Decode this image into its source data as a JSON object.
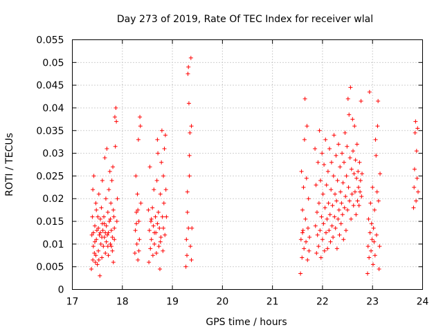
{
  "chart_data": {
    "type": "scatter",
    "title": "Day 273 of 2019, Rate Of TEC Index for receiver wlal",
    "xlabel": "GPS time / hours",
    "ylabel": "ROTI / TECUs",
    "xlim": [
      17,
      24
    ],
    "ylim": [
      0,
      0.055
    ],
    "xticks": [
      "17",
      "18",
      "19",
      "20",
      "21",
      "22",
      "23",
      "24"
    ],
    "yticks": [
      "0",
      "0.005",
      "0.01",
      "0.015",
      "0.02",
      "0.025",
      "0.03",
      "0.035",
      "0.04",
      "0.045",
      "0.05",
      "0.055"
    ],
    "grid": true,
    "marker": "+",
    "color": "#ff0000",
    "series": [
      {
        "name": "ROTI",
        "points": [
          [
            17.38,
            0.0045
          ],
          [
            17.39,
            0.012
          ],
          [
            17.4,
            0.016
          ],
          [
            17.41,
            0.022
          ],
          [
            17.42,
            0.0095
          ],
          [
            17.43,
            0.025
          ],
          [
            17.44,
            0.008
          ],
          [
            17.45,
            0.014
          ],
          [
            17.46,
            0.006
          ],
          [
            17.47,
            0.019
          ],
          [
            17.48,
            0.011
          ],
          [
            17.49,
            0.013
          ],
          [
            17.5,
            0.0055
          ],
          [
            17.51,
            0.016
          ],
          [
            17.52,
            0.0085
          ],
          [
            17.53,
            0.021
          ],
          [
            17.54,
            0.012
          ],
          [
            17.55,
            0.003
          ],
          [
            17.56,
            0.0155
          ],
          [
            17.57,
            0.01
          ],
          [
            17.58,
            0.018
          ],
          [
            17.59,
            0.007
          ],
          [
            17.6,
            0.024
          ],
          [
            17.61,
            0.013
          ],
          [
            17.62,
            0.0095
          ],
          [
            17.63,
            0.016
          ],
          [
            17.64,
            0.0115
          ],
          [
            17.65,
            0.029
          ],
          [
            17.66,
            0.008
          ],
          [
            17.67,
            0.02
          ],
          [
            17.68,
            0.014
          ],
          [
            17.69,
            0.031
          ],
          [
            17.7,
            0.012
          ],
          [
            17.71,
            0.017
          ],
          [
            17.72,
            0.0075
          ],
          [
            17.73,
            0.022
          ],
          [
            17.74,
            0.015
          ],
          [
            17.75,
            0.026
          ],
          [
            17.76,
            0.01
          ],
          [
            17.77,
            0.019
          ],
          [
            17.78,
            0.013
          ],
          [
            17.79,
            0.024
          ],
          [
            17.8,
            0.0085
          ],
          [
            17.81,
            0.027
          ],
          [
            17.82,
            0.006
          ],
          [
            17.83,
            0.016
          ],
          [
            17.84,
            0.011
          ],
          [
            17.85,
            0.038
          ],
          [
            17.86,
            0.0315
          ],
          [
            17.87,
            0.04
          ],
          [
            17.88,
            0.037
          ],
          [
            17.89,
            0.015
          ],
          [
            17.9,
            0.02
          ],
          [
            17.42,
            0.0125
          ],
          [
            17.45,
            0.0105
          ],
          [
            17.48,
            0.0175
          ],
          [
            17.52,
            0.0135
          ],
          [
            17.56,
            0.0125
          ],
          [
            17.6,
            0.0145
          ],
          [
            17.64,
            0.0145
          ],
          [
            17.68,
            0.0105
          ],
          [
            17.72,
            0.0125
          ],
          [
            17.76,
            0.0155
          ],
          [
            17.8,
            0.0115
          ],
          [
            17.84,
            0.0135
          ],
          [
            17.41,
            0.0065
          ],
          [
            17.47,
            0.0075
          ],
          [
            17.53,
            0.0065
          ],
          [
            17.59,
            0.0115
          ],
          [
            17.66,
            0.0125
          ],
          [
            17.71,
            0.0095
          ],
          [
            17.78,
            0.0095
          ],
          [
            17.82,
            0.0175
          ],
          [
            18.25,
            0.008
          ],
          [
            18.26,
            0.013
          ],
          [
            18.27,
            0.025
          ],
          [
            18.28,
            0.017
          ],
          [
            18.29,
            0.01
          ],
          [
            18.3,
            0.021
          ],
          [
            18.31,
            0.0065
          ],
          [
            18.32,
            0.033
          ],
          [
            18.33,
            0.015
          ],
          [
            18.34,
            0.011
          ],
          [
            18.35,
            0.038
          ],
          [
            18.36,
            0.036
          ],
          [
            18.37,
            0.019
          ],
          [
            18.28,
            0.0145
          ],
          [
            18.31,
            0.0175
          ],
          [
            18.33,
            0.0085
          ],
          [
            18.52,
            0.0175
          ],
          [
            18.53,
            0.006
          ],
          [
            18.54,
            0.013
          ],
          [
            18.55,
            0.027
          ],
          [
            18.56,
            0.009
          ],
          [
            18.57,
            0.015
          ],
          [
            18.58,
            0.011
          ],
          [
            18.6,
            0.018
          ],
          [
            18.61,
            0.0075
          ],
          [
            18.62,
            0.014
          ],
          [
            18.63,
            0.022
          ],
          [
            18.64,
            0.01
          ],
          [
            18.66,
            0.016
          ],
          [
            18.67,
            0.0125
          ],
          [
            18.68,
            0.008
          ],
          [
            18.69,
            0.024
          ],
          [
            18.7,
            0.033
          ],
          [
            18.71,
            0.03
          ],
          [
            18.72,
            0.017
          ],
          [
            18.73,
            0.0095
          ],
          [
            18.74,
            0.0135
          ],
          [
            18.75,
            0.0045
          ],
          [
            18.76,
            0.021
          ],
          [
            18.77,
            0.0115
          ],
          [
            18.78,
            0.028
          ],
          [
            18.79,
            0.035
          ],
          [
            18.8,
            0.016
          ],
          [
            18.81,
            0.0085
          ],
          [
            18.82,
            0.025
          ],
          [
            18.83,
            0.019
          ],
          [
            18.84,
            0.031
          ],
          [
            18.85,
            0.012
          ],
          [
            18.86,
            0.034
          ],
          [
            18.87,
            0.022
          ],
          [
            18.88,
            0.016
          ],
          [
            18.58,
            0.0155
          ],
          [
            18.64,
            0.0125
          ],
          [
            18.7,
            0.0145
          ],
          [
            18.76,
            0.0105
          ],
          [
            18.82,
            0.0135
          ],
          [
            19.27,
            0.005
          ],
          [
            19.28,
            0.011
          ],
          [
            19.29,
            0.0075
          ],
          [
            19.3,
            0.017
          ],
          [
            19.31,
            0.0475
          ],
          [
            19.32,
            0.049
          ],
          [
            19.33,
            0.041
          ],
          [
            19.34,
            0.025
          ],
          [
            19.35,
            0.0345
          ],
          [
            19.36,
            0.0095
          ],
          [
            19.37,
            0.051
          ],
          [
            19.38,
            0.036
          ],
          [
            19.39,
            0.0135
          ],
          [
            19.3,
            0.0215
          ],
          [
            19.34,
            0.0295
          ],
          [
            19.32,
            0.0135
          ],
          [
            19.38,
            0.0065
          ],
          [
            21.56,
            0.0035
          ],
          [
            21.57,
            0.011
          ],
          [
            21.58,
            0.026
          ],
          [
            21.59,
            0.007
          ],
          [
            21.6,
            0.0175
          ],
          [
            21.61,
            0.013
          ],
          [
            21.62,
            0.0225
          ],
          [
            21.63,
            0.009
          ],
          [
            21.64,
            0.033
          ],
          [
            21.65,
            0.042
          ],
          [
            21.66,
            0.0155
          ],
          [
            21.67,
            0.0105
          ],
          [
            21.68,
            0.0245
          ],
          [
            21.69,
            0.036
          ],
          [
            21.7,
            0.0065
          ],
          [
            21.71,
            0.0135
          ],
          [
            21.72,
            0.02
          ],
          [
            21.73,
            0.0085
          ],
          [
            21.74,
            0.0115
          ],
          [
            21.6,
            0.0125
          ],
          [
            21.85,
            0.031
          ],
          [
            21.86,
            0.014
          ],
          [
            21.87,
            0.023
          ],
          [
            21.88,
            0.008
          ],
          [
            21.89,
            0.017
          ],
          [
            21.9,
            0.012
          ],
          [
            21.91,
            0.028
          ],
          [
            21.92,
            0.0095
          ],
          [
            21.93,
            0.019
          ],
          [
            21.94,
            0.035
          ],
          [
            21.95,
            0.013
          ],
          [
            21.96,
            0.024
          ],
          [
            21.97,
            0.007
          ],
          [
            21.98,
            0.016
          ],
          [
            21.99,
            0.03
          ],
          [
            22.0,
            0.011
          ],
          [
            22.01,
            0.021
          ],
          [
            22.02,
            0.0145
          ],
          [
            22.03,
            0.0275
          ],
          [
            22.04,
            0.0085
          ],
          [
            22.05,
            0.018
          ],
          [
            22.06,
            0.033
          ],
          [
            22.07,
            0.0125
          ],
          [
            22.08,
            0.023
          ],
          [
            22.09,
            0.0155
          ],
          [
            22.1,
            0.009
          ],
          [
            22.11,
            0.026
          ],
          [
            22.12,
            0.019
          ],
          [
            22.13,
            0.013
          ],
          [
            22.14,
            0.031
          ],
          [
            22.15,
            0.0165
          ],
          [
            22.16,
            0.0105
          ],
          [
            22.17,
            0.022
          ],
          [
            22.18,
            0.028
          ],
          [
            22.19,
            0.014
          ],
          [
            22.2,
            0.0185
          ],
          [
            22.21,
            0.0115
          ],
          [
            22.22,
            0.025
          ],
          [
            22.23,
            0.034
          ],
          [
            22.24,
            0.016
          ],
          [
            22.25,
            0.021
          ],
          [
            22.26,
            0.0135
          ],
          [
            22.27,
            0.0295
          ],
          [
            22.28,
            0.0195
          ],
          [
            22.29,
            0.009
          ],
          [
            22.3,
            0.024
          ],
          [
            22.31,
            0.0155
          ],
          [
            22.32,
            0.032
          ],
          [
            22.33,
            0.0175
          ],
          [
            22.34,
            0.012
          ],
          [
            22.35,
            0.027
          ],
          [
            22.36,
            0.0215
          ],
          [
            22.37,
            0.0145
          ],
          [
            22.38,
            0.019
          ],
          [
            22.39,
            0.03
          ],
          [
            22.4,
            0.0165
          ],
          [
            22.41,
            0.0235
          ],
          [
            22.42,
            0.011
          ],
          [
            22.43,
            0.028
          ],
          [
            22.44,
            0.018
          ],
          [
            22.45,
            0.0345
          ],
          [
            22.46,
            0.0205
          ],
          [
            22.47,
            0.013
          ],
          [
            22.48,
            0.025
          ],
          [
            22.49,
            0.0315
          ],
          [
            22.5,
            0.0175
          ],
          [
            22.51,
            0.042
          ],
          [
            22.52,
            0.0225
          ],
          [
            22.53,
            0.0385
          ],
          [
            22.54,
            0.0195
          ],
          [
            22.55,
            0.029
          ],
          [
            22.56,
            0.0445
          ],
          [
            22.57,
            0.0155
          ],
          [
            22.58,
            0.0265
          ],
          [
            22.59,
            0.021
          ],
          [
            22.6,
            0.0375
          ],
          [
            22.61,
            0.0305
          ],
          [
            22.62,
            0.0185
          ],
          [
            22.63,
            0.0255
          ],
          [
            22.64,
            0.036
          ],
          [
            22.65,
            0.0215
          ],
          [
            22.66,
            0.0285
          ],
          [
            22.67,
            0.0165
          ],
          [
            22.68,
            0.0245
          ],
          [
            22.69,
            0.032
          ],
          [
            22.7,
            0.0195
          ],
          [
            22.71,
            0.026
          ],
          [
            22.72,
            0.0225
          ],
          [
            22.73,
            0.0185
          ],
          [
            22.74,
            0.028
          ],
          [
            22.75,
            0.0215
          ],
          [
            22.76,
            0.024
          ],
          [
            22.77,
            0.0415
          ],
          [
            22.78,
            0.0205
          ],
          [
            22.79,
            0.0255
          ],
          [
            22.9,
            0.0035
          ],
          [
            22.91,
            0.0095
          ],
          [
            22.92,
            0.0155
          ],
          [
            22.93,
            0.007
          ],
          [
            22.94,
            0.0435
          ],
          [
            22.95,
            0.0125
          ],
          [
            22.96,
            0.019
          ],
          [
            22.97,
            0.0085
          ],
          [
            22.98,
            0.0145
          ],
          [
            22.99,
            0.011
          ],
          [
            23.0,
            0.0225
          ],
          [
            23.01,
            0.0055
          ],
          [
            23.02,
            0.0135
          ],
          [
            23.03,
            0.0105
          ],
          [
            23.04,
            0.0175
          ],
          [
            23.05,
            0.0075
          ],
          [
            23.06,
            0.033
          ],
          [
            23.07,
            0.0295
          ],
          [
            23.08,
            0.012
          ],
          [
            23.09,
            0.0215
          ],
          [
            23.1,
            0.036
          ],
          [
            23.11,
            0.0415
          ],
          [
            23.12,
            0.0195
          ],
          [
            23.13,
            0.0045
          ],
          [
            23.14,
            0.0095
          ],
          [
            23.15,
            0.0255
          ],
          [
            23.82,
            0.018
          ],
          [
            23.83,
            0.0225
          ],
          [
            23.84,
            0.0265
          ],
          [
            23.85,
            0.0345
          ],
          [
            23.86,
            0.037
          ],
          [
            23.87,
            0.0195
          ],
          [
            23.88,
            0.0305
          ],
          [
            23.89,
            0.0245
          ],
          [
            23.9,
            0.0355
          ],
          [
            23.91,
            0.0215
          ]
        ]
      }
    ]
  }
}
